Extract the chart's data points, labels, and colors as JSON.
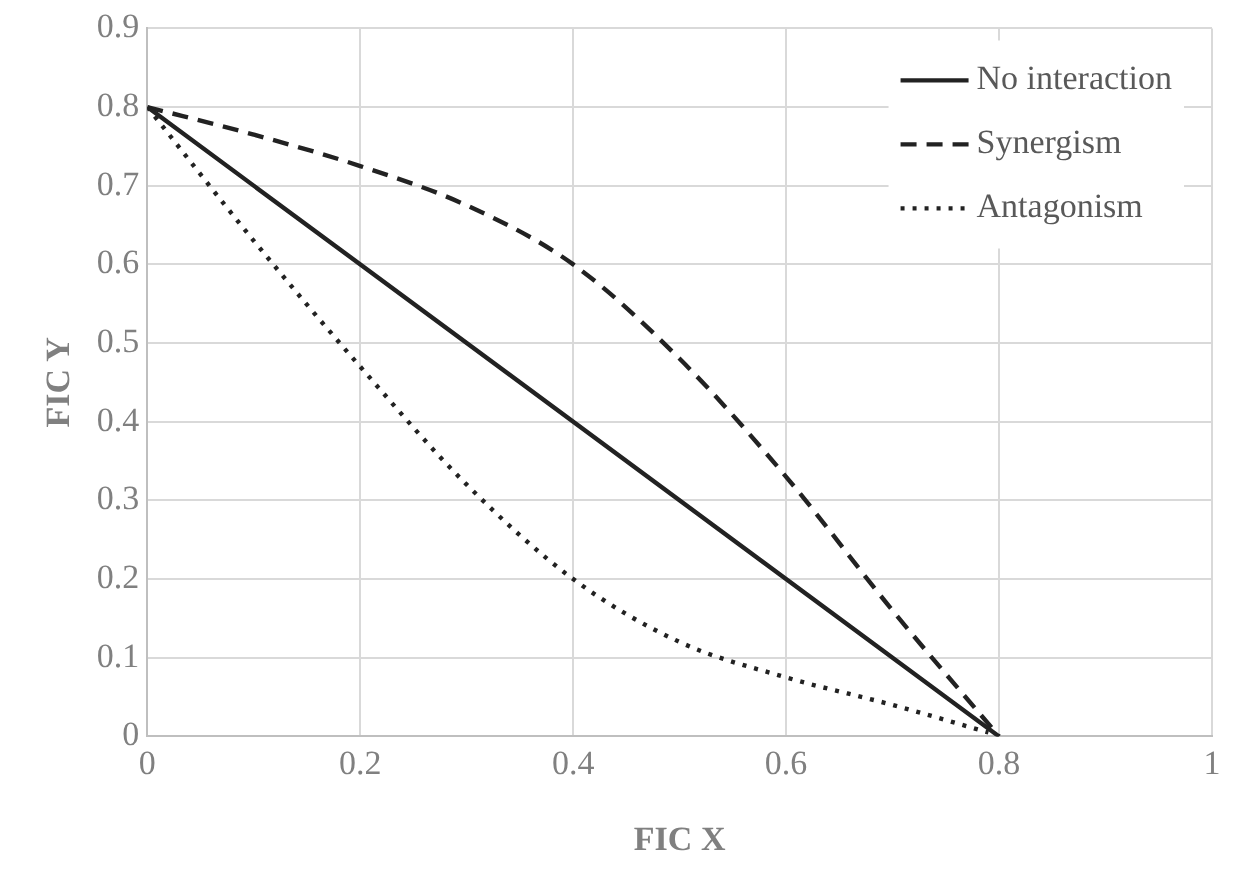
{
  "chart_data": {
    "type": "line",
    "xlabel": "FIC X",
    "ylabel": "FIC Y",
    "xlim": [
      0,
      1
    ],
    "xticks": [
      0,
      0.2,
      0.4,
      0.6,
      0.8,
      1
    ],
    "ylim": [
      0,
      0.9
    ],
    "yticks": [
      0,
      0.1,
      0.2,
      0.3,
      0.4,
      0.5,
      0.6,
      0.7,
      0.8,
      0.9
    ],
    "grid": true,
    "legend": "top right",
    "marker": "none",
    "series": [
      {
        "name": "No interaction",
        "color": "#222222",
        "line_style": "solid",
        "x": [
          0,
          0.8
        ],
        "values": [
          0.8,
          0
        ]
      },
      {
        "name": "Synergism",
        "color": "#222222",
        "line_style": "dashed",
        "x": [
          0,
          0.1,
          0.2,
          0.3,
          0.4,
          0.5,
          0.6,
          0.7,
          0.8
        ],
        "values": [
          0.8,
          0.765,
          0.725,
          0.675,
          0.6,
          0.48,
          0.33,
          0.16,
          0
        ]
      },
      {
        "name": "Antagonism",
        "color": "#222222",
        "line_style": "dotted",
        "x": [
          0,
          0.1,
          0.2,
          0.3,
          0.4,
          0.5,
          0.6,
          0.7,
          0.79
        ],
        "values": [
          0.8,
          0.63,
          0.47,
          0.32,
          0.2,
          0.12,
          0.075,
          0.04,
          0.005
        ]
      }
    ]
  }
}
